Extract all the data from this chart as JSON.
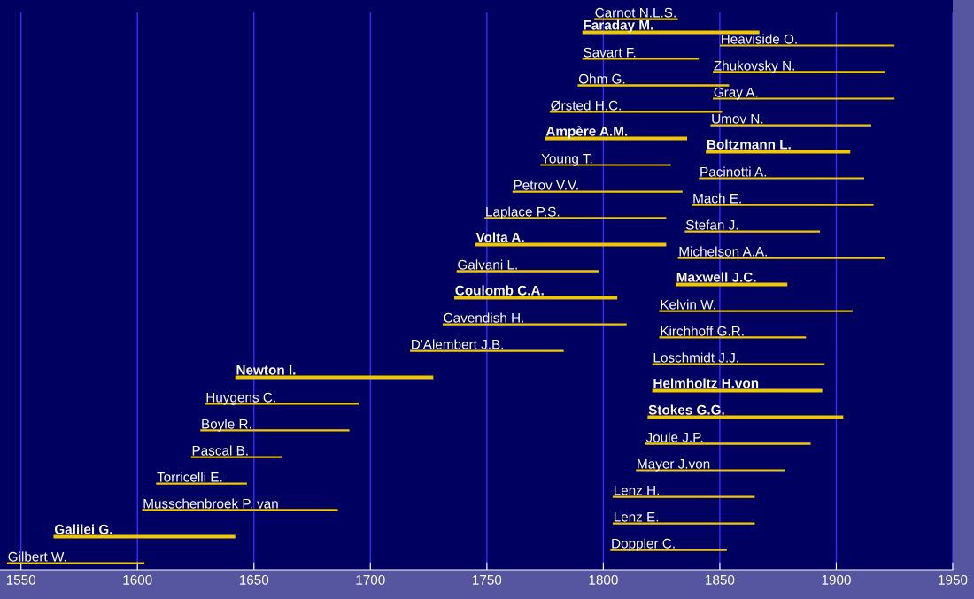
{
  "chart_data": {
    "type": "bar",
    "orientation": "horizontal",
    "categories": [
      "Carnot N.L.S.",
      "Faraday M.",
      "Heaviside O.",
      "Savart F.",
      "Zhukovsky N.",
      "Ohm G.",
      "Gray A.",
      "Ørsted H.C.",
      "Umov N.",
      "Ampère A.M.",
      "Boltzmann L.",
      "Young T.",
      "Pacinotti A.",
      "Petrov V.V.",
      "Mach E.",
      "Laplace P.S.",
      "Stefan J.",
      "Volta A.",
      "Michelson A.A.",
      "Galvani L.",
      "Maxwell J.C.",
      "Coulomb C.A.",
      "Kelvin W.",
      "Cavendish H.",
      "Kirchhoff G.R.",
      "D'Alembert J.B.",
      "Loschmidt J.J.",
      "Newton I.",
      "Helmholtz H.von",
      "Huygens C.",
      "Stokes G.G.",
      "Boyle R.",
      "Joule J.P.",
      "Pascal B.",
      "Mayer J.von",
      "Torricelli E.",
      "Lenz H.",
      "Musschenbroek P. van",
      "Lenz E.",
      "Galilei G.",
      "Doppler C.",
      "Gilbert W."
    ],
    "series": [
      {
        "color": "#f0c800",
        "base": [
          1796,
          null,
          1850,
          1791,
          1847,
          1789,
          1847,
          1777,
          1846,
          null,
          null,
          1773,
          1841,
          1761,
          1838,
          1749,
          1835,
          null,
          1832,
          1737,
          null,
          null,
          1824,
          1731,
          1824,
          1717,
          1821,
          null,
          null,
          1629,
          null,
          1627,
          1818,
          1623,
          1814,
          1608,
          1804,
          1602,
          1804,
          null,
          1803,
          1544
        ],
        "values": [
          36,
          null,
          75,
          50,
          74,
          65,
          78,
          74,
          69,
          null,
          null,
          56,
          71,
          73,
          78,
          78,
          58,
          null,
          89,
          61,
          null,
          null,
          83,
          79,
          63,
          66,
          74,
          null,
          null,
          66,
          null,
          64,
          71,
          39,
          64,
          39,
          61,
          84,
          61,
          null,
          50,
          59
        ]
      },
      {
        "color": "#f0c800",
        "base": [
          null,
          1791,
          null,
          null,
          null,
          null,
          null,
          null,
          null,
          1775,
          1844,
          null,
          null,
          null,
          null,
          null,
          null,
          1745,
          null,
          null,
          1831,
          1736,
          null,
          null,
          null,
          null,
          null,
          1642,
          1821,
          null,
          1819,
          null,
          null,
          null,
          null,
          null,
          null,
          null,
          null,
          1564,
          null,
          null
        ],
        "values": [
          null,
          76,
          null,
          null,
          null,
          null,
          null,
          null,
          null,
          61,
          62,
          null,
          null,
          null,
          null,
          null,
          null,
          82,
          null,
          null,
          48,
          70,
          null,
          null,
          null,
          null,
          null,
          85,
          73,
          null,
          84,
          null,
          null,
          null,
          null,
          null,
          null,
          null,
          null,
          78,
          null,
          null
        ]
      }
    ],
    "xlim": [
      1541,
      1950
    ],
    "xticks": [
      1550,
      1600,
      1650,
      1700,
      1750,
      1800,
      1850,
      1900,
      1950
    ],
    "grid": "x"
  }
}
